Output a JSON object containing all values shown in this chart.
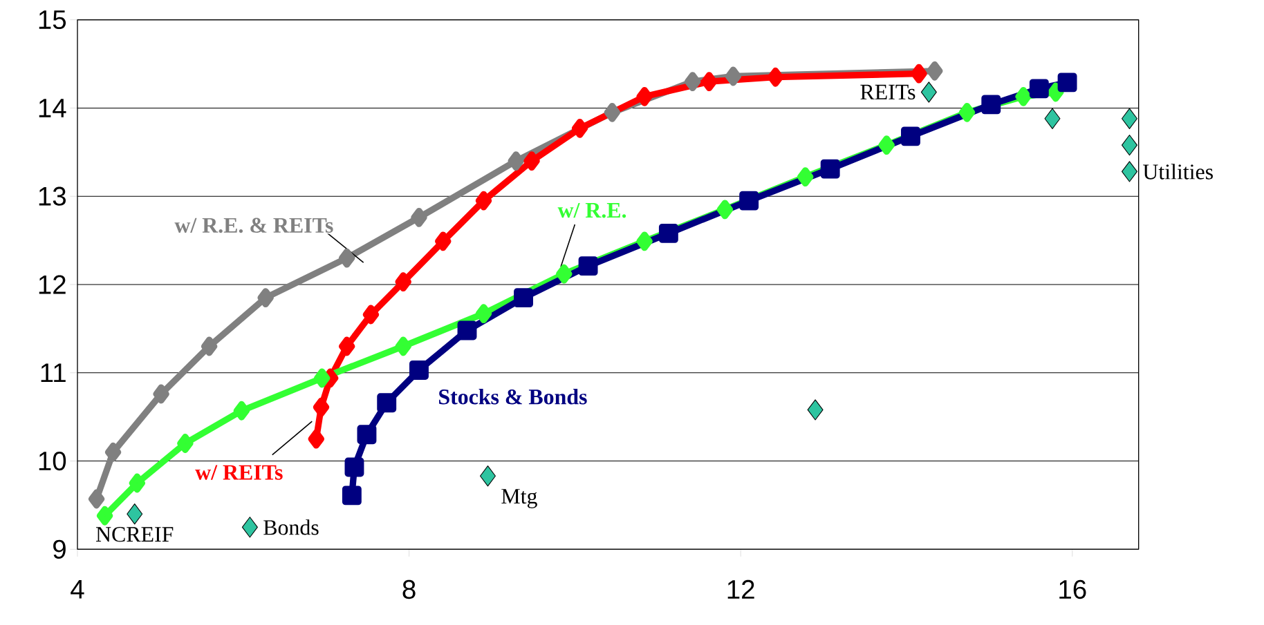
{
  "chart_data": {
    "type": "line",
    "xlim": [
      4,
      16.8
    ],
    "ylim": [
      9,
      15
    ],
    "xticks": [
      4,
      8,
      12,
      16
    ],
    "yticks": [
      9,
      10,
      11,
      12,
      13,
      14,
      15
    ],
    "grid": "y",
    "series": [
      {
        "name": "w/ R.E. & REITs",
        "color": "#808080",
        "marker": "diamond",
        "x": [
          4.23,
          4.43,
          5.01,
          5.59,
          6.27,
          7.25,
          8.12,
          9.29,
          10.45,
          11.42,
          11.91,
          14.34
        ],
        "values": [
          9.57,
          10.1,
          10.76,
          11.3,
          11.85,
          12.3,
          12.76,
          13.4,
          13.95,
          14.3,
          14.36,
          14.42
        ]
      },
      {
        "name": "w/ REITs",
        "color": "#ff0000",
        "marker": "diamond",
        "x": [
          6.88,
          6.94,
          7.05,
          7.25,
          7.54,
          7.93,
          8.41,
          8.9,
          9.48,
          10.06,
          10.84,
          11.62,
          12.42,
          14.15
        ],
        "values": [
          10.25,
          10.61,
          10.94,
          11.3,
          11.66,
          12.03,
          12.49,
          12.95,
          13.4,
          13.77,
          14.13,
          14.3,
          14.35,
          14.39
        ]
      },
      {
        "name": "w/ R.E.",
        "color": "#33ff33",
        "marker": "diamond",
        "x": [
          4.33,
          4.72,
          5.3,
          5.98,
          6.95,
          7.93,
          8.9,
          9.87,
          10.84,
          11.81,
          12.78,
          13.76,
          14.73,
          15.41,
          15.8
        ],
        "values": [
          9.38,
          9.75,
          10.2,
          10.57,
          10.94,
          11.3,
          11.67,
          12.12,
          12.49,
          12.85,
          13.22,
          13.58,
          13.95,
          14.13,
          14.18
        ]
      },
      {
        "name": "Stocks & Bonds",
        "color": "#000080",
        "marker": "square",
        "x": [
          7.31,
          7.34,
          7.49,
          7.73,
          8.12,
          8.7,
          9.38,
          10.16,
          11.13,
          12.1,
          13.08,
          14.05,
          15.02,
          15.6,
          15.94
        ],
        "values": [
          9.61,
          9.93,
          10.3,
          10.66,
          11.03,
          11.48,
          11.85,
          12.21,
          12.58,
          12.95,
          13.31,
          13.68,
          14.04,
          14.22,
          14.29
        ]
      },
      {
        "type": "scatter",
        "color": "#2ec4a0",
        "marker": "diamond",
        "x": [
          4.69,
          6.08,
          8.95,
          12.9,
          14.27,
          15.76,
          16.69,
          16.69,
          16.69
        ],
        "values": [
          9.4,
          9.25,
          9.83,
          10.58,
          14.18,
          13.88,
          13.88,
          13.58,
          13.28
        ]
      }
    ],
    "annotations": [
      {
        "text": "NCREIF",
        "x": 4.69,
        "y": 9.4
      },
      {
        "text": "Bonds",
        "x": 6.08,
        "y": 9.25
      },
      {
        "text": "Mtg",
        "x": 8.95,
        "y": 9.83
      },
      {
        "text": "REITs",
        "x": 14.27,
        "y": 14.18
      },
      {
        "text": "Utilities",
        "x": 16.69,
        "y": 13.28
      }
    ]
  }
}
